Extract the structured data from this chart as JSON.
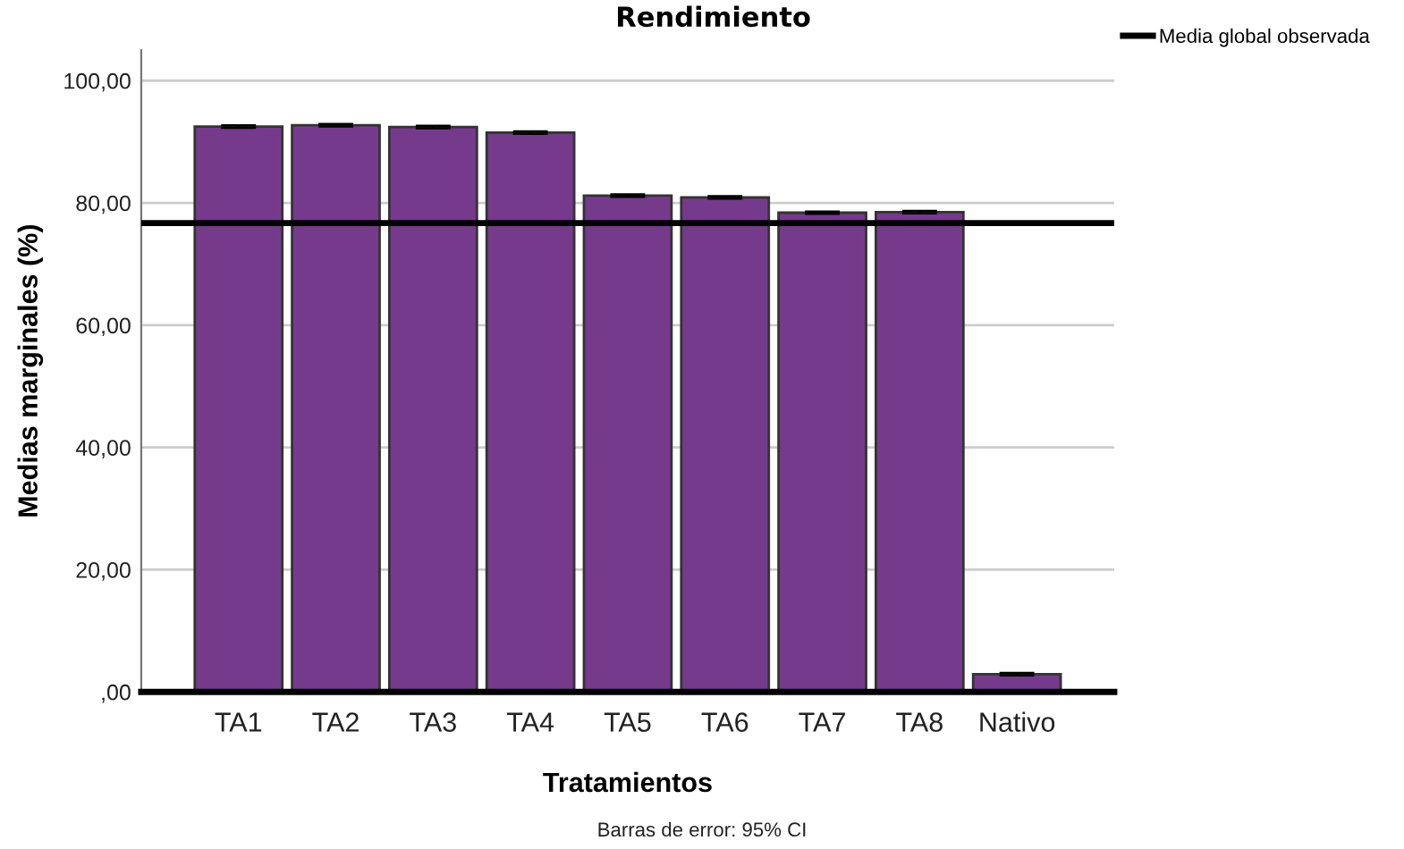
{
  "chart_data": {
    "type": "bar",
    "title": "Rendimiento",
    "xlabel": "Tratamientos",
    "ylabel": "Medias marginales (%)",
    "categories": [
      "TA1",
      "TA2",
      "TA3",
      "TA4",
      "TA5",
      "TA6",
      "TA7",
      "TA8",
      "Nativo"
    ],
    "values": [
      92.5,
      92.7,
      92.4,
      91.5,
      81.2,
      80.9,
      78.4,
      78.5,
      2.9
    ],
    "errors": [
      0.2,
      0.2,
      0.2,
      0.2,
      0.2,
      0.2,
      0.2,
      0.2,
      0.2
    ],
    "color": "#763a8c",
    "ylim": [
      0,
      105
    ],
    "yticks": [
      {
        "value": 0,
        "label": ",00"
      },
      {
        "value": 20,
        "label": "20,00"
      },
      {
        "value": 40,
        "label": "40,00"
      },
      {
        "value": 60,
        "label": "60,00"
      },
      {
        "value": 80,
        "label": "80,00"
      },
      {
        "value": 100,
        "label": "100,00"
      }
    ],
    "ref_lines": [
      {
        "axis": "y",
        "value": 76.7,
        "label": "Media global observada",
        "color": "#000000",
        "line_style": "solid"
      }
    ],
    "grid": "y",
    "legend": "top right",
    "annotations": [
      "Barras de error: 95% CI"
    ]
  }
}
